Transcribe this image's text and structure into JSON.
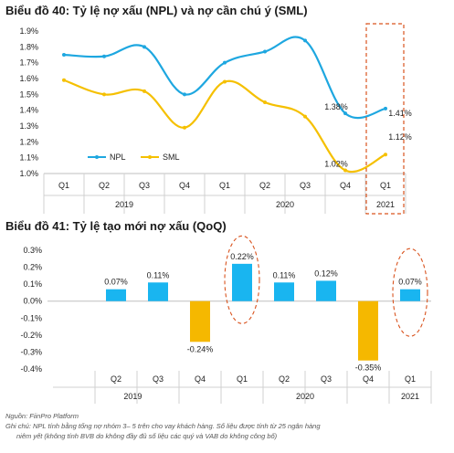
{
  "page": {
    "chart1_title": "Biểu đồ 40: Tỷ lệ nợ xấu (NPL) và nợ cần chú ý (SML)",
    "chart2_title": "Biểu đồ 41: Tỷ lệ tạo mới nợ xấu (QoQ)",
    "source": "Nguồn: FiinPro Platform",
    "note_line1": "Ghi chú: NPL tính bằng tổng nợ nhóm 3– 5 trên cho vay khách hàng. Số liệu được tính từ 25 ngân hàng",
    "note_line2": "niêm yết (không tính BVB do không đầy đủ số liệu các quý và VAB do không công bố)"
  },
  "colors": {
    "npl": "#1ea7e0",
    "sml": "#f5c000",
    "bar_positive": "#19b5f0",
    "bar_negative": "#f5b800",
    "highlight": "#d9531e"
  },
  "chart_data": [
    {
      "type": "line",
      "title": "Biểu đồ 40: Tỷ lệ nợ xấu (NPL) và nợ cần chú ý (SML)",
      "categories": [
        "Q1",
        "Q2",
        "Q3",
        "Q4",
        "Q1",
        "Q2",
        "Q3",
        "Q4",
        "Q1"
      ],
      "year_groups": [
        {
          "label": "2019",
          "start": 0,
          "end": 3
        },
        {
          "label": "2020",
          "start": 4,
          "end": 7
        },
        {
          "label": "2021",
          "start": 8,
          "end": 8
        }
      ],
      "series": [
        {
          "name": "NPL",
          "color": "#1ea7e0",
          "values": [
            1.75,
            1.74,
            1.8,
            1.5,
            1.7,
            1.77,
            1.84,
            1.38,
            1.41
          ]
        },
        {
          "name": "SML",
          "color": "#f5c000",
          "values": [
            1.59,
            1.5,
            1.52,
            1.29,
            1.58,
            1.45,
            1.36,
            1.02,
            1.12
          ]
        }
      ],
      "data_labels": [
        {
          "series": 0,
          "index": 7,
          "text": "1.38%"
        },
        {
          "series": 0,
          "index": 8,
          "text": "1.41%"
        },
        {
          "series": 1,
          "index": 7,
          "text": "1.02%"
        },
        {
          "series": 1,
          "index": 8,
          "text": "1.12%"
        }
      ],
      "ylim": [
        1.0,
        1.9
      ],
      "yticks": [
        "1.0%",
        "1.1%",
        "1.2%",
        "1.3%",
        "1.4%",
        "1.5%",
        "1.6%",
        "1.7%",
        "1.8%",
        "1.9%"
      ],
      "legend_position": "bottom-left",
      "highlight_index": 8
    },
    {
      "type": "bar",
      "title": "Biểu đồ 41: Tỷ lệ tạo mới nợ xấu (QoQ)",
      "categories": [
        "Q2",
        "Q3",
        "Q4",
        "Q1",
        "Q2",
        "Q3",
        "Q4",
        "Q1"
      ],
      "values": [
        0.07,
        0.11,
        -0.24,
        0.22,
        0.11,
        0.12,
        -0.35,
        0.07
      ],
      "value_labels": [
        "0.07%",
        "0.11%",
        "-0.24%",
        "0.22%",
        "0.11%",
        "0.12%",
        "-0.35%",
        "0.07%"
      ],
      "year_groups": [
        {
          "label": "2019",
          "start": 0,
          "end": 2
        },
        {
          "label": "2020",
          "start": 3,
          "end": 6
        },
        {
          "label": "2021",
          "start": 7,
          "end": 7
        }
      ],
      "ylim": [
        -0.4,
        0.3
      ],
      "yticks": [
        "-0.4%",
        "-0.3%",
        "-0.2%",
        "-0.1%",
        "0.0%",
        "0.1%",
        "0.2%",
        "0.3%"
      ],
      "highlight_indices": [
        3,
        7
      ]
    }
  ]
}
